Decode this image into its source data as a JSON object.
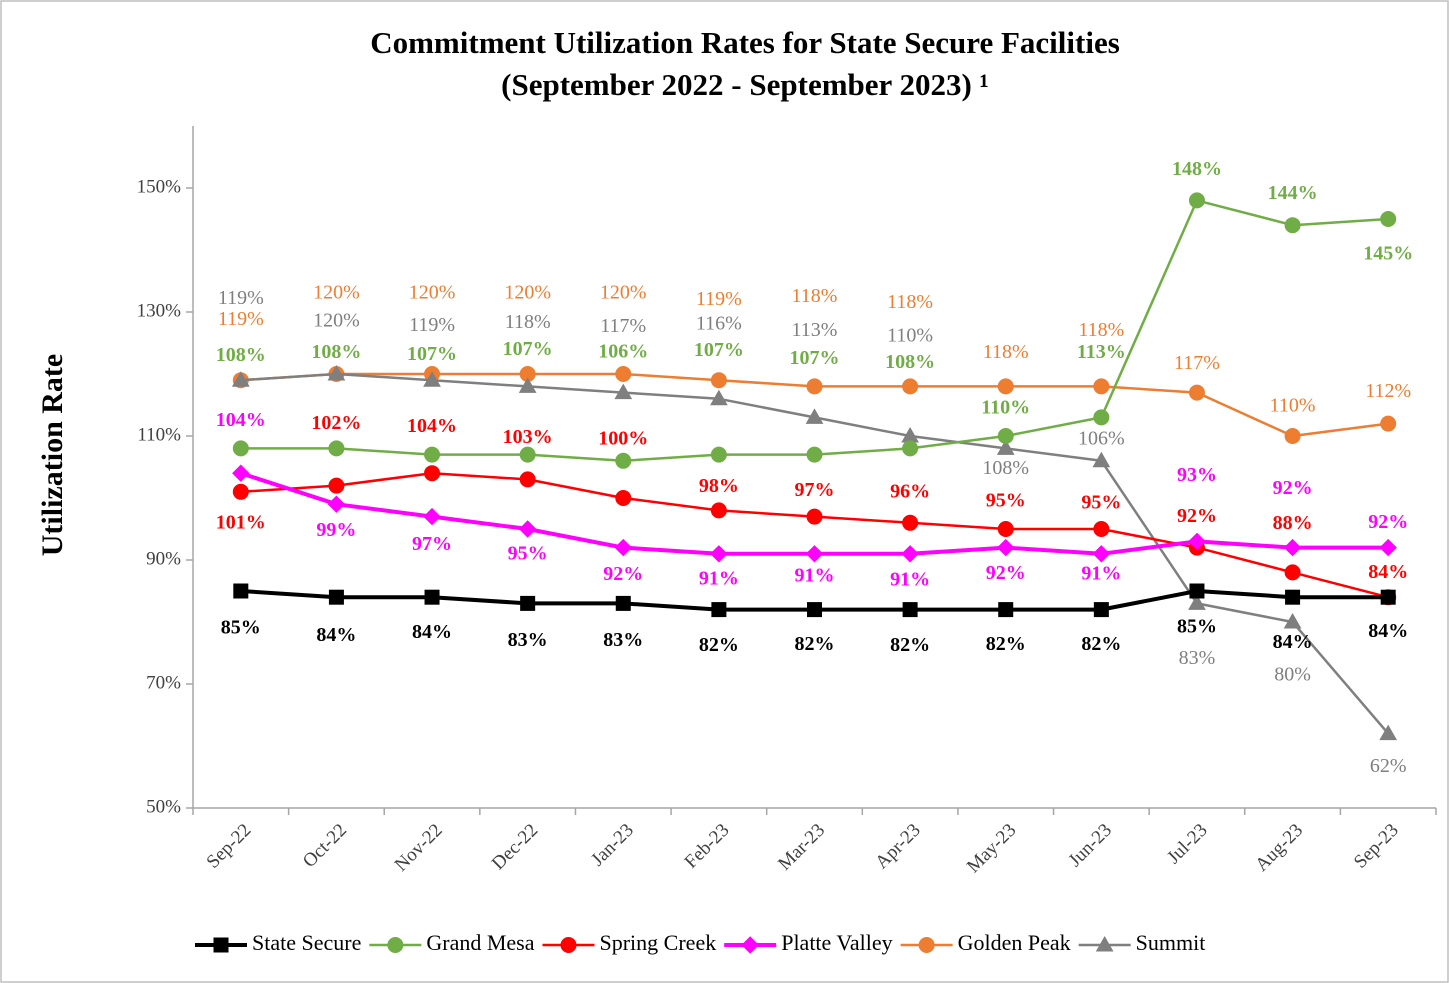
{
  "chart_data": {
    "type": "line",
    "title": [
      "Commitment Utilization Rates for State Secure Facilities",
      "(September 2022 - September 2023) ¹"
    ],
    "y_label": "Utilization Rate",
    "categories": [
      "Sep-22",
      "Oct-22",
      "Nov-22",
      "Dec-22",
      "Jan-23",
      "Feb-23",
      "Mar-23",
      "Apr-23",
      "May-23",
      "Jun-23",
      "Jul-23",
      "Aug-23",
      "Sep-23"
    ],
    "ylim": [
      50,
      160
    ],
    "yticks": [
      {
        "value": 50,
        "label": "50%"
      },
      {
        "value": 70,
        "label": "70%"
      },
      {
        "value": 90,
        "label": "90%"
      },
      {
        "value": 110,
        "label": "110%"
      },
      {
        "value": 130,
        "label": "130%"
      },
      {
        "value": 150,
        "label": "150%"
      }
    ],
    "legend": "bottom",
    "series": [
      {
        "name": "State Secure",
        "color": "#000000",
        "marker": "square",
        "values": [
          85,
          84,
          84,
          83,
          83,
          82,
          82,
          82,
          82,
          82,
          85,
          84,
          84
        ],
        "value_labels": [
          "85%",
          "84%",
          "84%",
          "83%",
          "83%",
          "82%",
          "82%",
          "82%",
          "82%",
          "82%",
          "85%",
          "84%",
          "84%"
        ]
      },
      {
        "name": "Grand Mesa",
        "color": "#70ad47",
        "marker": "circle",
        "values": [
          108,
          108,
          107,
          107,
          106,
          107,
          107,
          108,
          110,
          113,
          148,
          144,
          145
        ],
        "value_labels": [
          "108%",
          "108%",
          "107%",
          "107%",
          "106%",
          "107%",
          "107%",
          "108%",
          "110%",
          "113%",
          "148%",
          "144%",
          "145%"
        ]
      },
      {
        "name": "Spring Creek",
        "color": "#ff0000",
        "marker": "circle",
        "values": [
          101,
          102,
          104,
          103,
          100,
          98,
          97,
          96,
          95,
          95,
          92,
          88,
          84
        ],
        "value_labels": [
          "101%",
          "102%",
          "104%",
          "103%",
          "100%",
          "98%",
          "97%",
          "96%",
          "95%",
          "95%",
          "92%",
          "88%",
          "84%"
        ]
      },
      {
        "name": "Platte Valley",
        "color": "#ff00ff",
        "marker": "diamond",
        "values": [
          104,
          99,
          97,
          95,
          92,
          91,
          91,
          91,
          92,
          91,
          93,
          92,
          92
        ],
        "value_labels": [
          "104%",
          "99%",
          "97%",
          "95%",
          "92%",
          "91%",
          "91%",
          "91%",
          "92%",
          "91%",
          "93%",
          "92%",
          "92%"
        ]
      },
      {
        "name": "Golden Peak",
        "color": "#ed7d31",
        "marker": "circle",
        "values": [
          119,
          120,
          120,
          120,
          120,
          119,
          118,
          118,
          118,
          118,
          117,
          110,
          112
        ],
        "value_labels": [
          "119%",
          "120%",
          "120%",
          "120%",
          "120%",
          "119%",
          "118%",
          "118%",
          "118%",
          "118%",
          "117%",
          "110%",
          "112%"
        ]
      },
      {
        "name": "Summit",
        "color": "#7f7f7f",
        "marker": "triangle",
        "values": [
          119,
          120,
          119,
          118,
          117,
          116,
          113,
          110,
          108,
          106,
          83,
          80,
          62
        ],
        "value_labels": [
          "119%",
          "120%",
          "119%",
          "118%",
          "117%",
          "116%",
          "113%",
          "110%",
          "108%",
          "106%",
          "83%",
          "80%",
          "62%"
        ]
      }
    ]
  }
}
